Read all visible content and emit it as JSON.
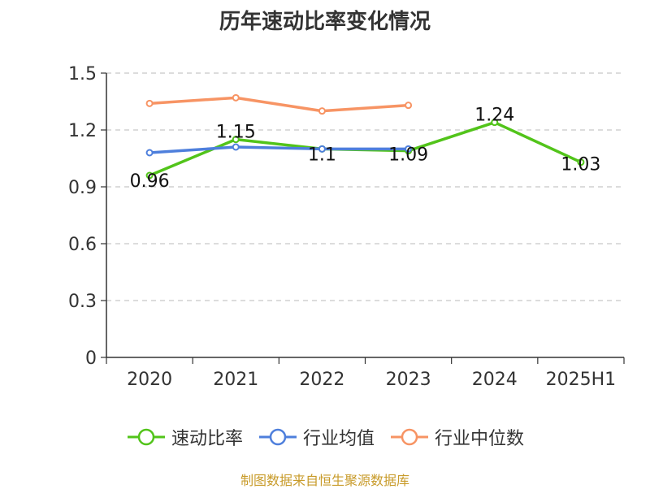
{
  "chart_data": {
    "type": "line",
    "title": "历年速动比率变化情况",
    "categories": [
      "2020",
      "2021",
      "2022",
      "2023",
      "2024",
      "2025H1"
    ],
    "ylim": [
      0,
      1.5
    ],
    "yticks": [
      "0",
      "0.3",
      "0.6",
      "0.9",
      "1.2",
      "1.5"
    ],
    "grid": true,
    "legend_position": "bottom",
    "series": [
      {
        "name": "速动比率",
        "color": "#52c41a",
        "values": [
          0.96,
          1.15,
          1.1,
          1.09,
          1.24,
          1.03
        ],
        "labels": [
          "0.96",
          "1.15",
          "1.1",
          "1.09",
          "1.24",
          "1.03"
        ]
      },
      {
        "name": "行业均值",
        "color": "#4e7fdc",
        "values": [
          1.08,
          1.11,
          1.1,
          1.1,
          null,
          null
        ]
      },
      {
        "name": "行业中位数",
        "color": "#f79464",
        "values": [
          1.34,
          1.37,
          1.3,
          1.33,
          null,
          null
        ]
      }
    ]
  },
  "footer": {
    "source": "制图数据来自恒生聚源数据库"
  }
}
